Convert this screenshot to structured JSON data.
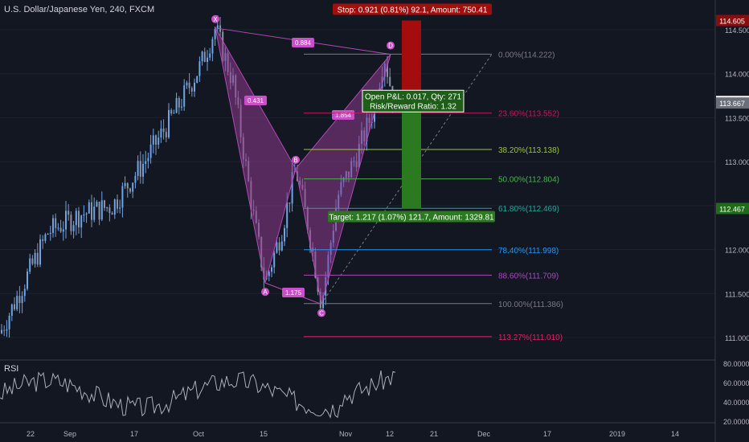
{
  "header": {
    "symbol_text": "U.S. Dollar/Japanese Yen, 240, FXCM"
  },
  "colors": {
    "background": "#131722",
    "candle_up": "#6ca6e8",
    "candle_down": "#8a93a6",
    "pattern_fill": "#8e3a8e",
    "pattern_stroke": "#b04ab4",
    "stop_red": "#a30d0d",
    "target_green": "#2b7a1f",
    "rsi_line": "#d1d4dc",
    "axis_text": "#b2b5be"
  },
  "chart_data": [
    {
      "type": "candlestick",
      "title": "U.S. Dollar/Japanese Yen, 240, FXCM",
      "y_axis": {
        "ticks": [
          "114.500",
          "114.000",
          "113.500",
          "113.000",
          "112.500",
          "112.000",
          "111.500",
          "111.000"
        ],
        "ylim": [
          110.75,
          114.72
        ]
      },
      "x_axis": {
        "ticks": [
          "22",
          "Sep",
          "17",
          "Oct",
          "15",
          "Nov",
          "12",
          "21",
          "Dec",
          "17",
          "2019",
          "14"
        ]
      },
      "price_badges": [
        {
          "label": "114.605",
          "value": 114.605,
          "color": "#880e0e"
        },
        {
          "label": "113.684",
          "value": 113.684,
          "color": "#ffffff"
        },
        {
          "label": "113.667",
          "value": 113.667,
          "color": "#6b6f7a"
        },
        {
          "label": "112.467",
          "value": 112.467,
          "color": "#1f6b1a"
        }
      ],
      "harmonic_pattern": {
        "points": [
          {
            "label": "X",
            "value": 114.52
          },
          {
            "label": "A",
            "value": 111.62
          },
          {
            "label": "B",
            "value": 112.92
          },
          {
            "label": "C",
            "value": 111.38
          },
          {
            "label": "D",
            "value": 114.22
          }
        ],
        "ratios": [
          {
            "label": "0.884"
          },
          {
            "label": "0.431"
          },
          {
            "label": "1.175"
          },
          {
            "label": "1.854"
          }
        ]
      },
      "fibonacci_levels": [
        {
          "label": "0.00%(114.222)",
          "value": 114.222,
          "color": "#787b86"
        },
        {
          "label": "23.60%(113.552)",
          "value": 113.552,
          "color": "#c2185b"
        },
        {
          "label": "38.20%(113.138)",
          "value": 113.138,
          "color": "#9cc43c"
        },
        {
          "label": "50.00%(112.804)",
          "value": 112.804,
          "color": "#4caf50"
        },
        {
          "label": "61.80%(112.469)",
          "value": 112.469,
          "color": "#26a69a"
        },
        {
          "label": "78.40%(111.998)",
          "value": 111.998,
          "color": "#2196f3"
        },
        {
          "label": "88.60%(111.709)",
          "value": 111.709,
          "color": "#ab47bc"
        },
        {
          "label": "100.00%(111.386)",
          "value": 111.386,
          "color": "#787b86"
        },
        {
          "label": "113.27%(111.010)",
          "value": 111.01,
          "color": "#e91e63"
        }
      ],
      "position": {
        "entry": 113.684,
        "stop": 114.605,
        "target": 112.467,
        "stop_label": "Stop: 0.921 (0.81%) 92.1, Amount: 750.41",
        "target_label": "Target: 1.217 (1.07%) 121.7, Amount: 1329.81",
        "pnl_label": "Open P&L: 0.017, Qty: 271",
        "rr_label": "Risk/Reward Ratio: 1.32"
      }
    },
    {
      "type": "line",
      "title": "RSI",
      "y_axis": {
        "ticks": [
          "80.0000",
          "60.0000",
          "40.0000",
          "20.0000"
        ],
        "ylim": [
          18,
          82
        ]
      }
    }
  ]
}
